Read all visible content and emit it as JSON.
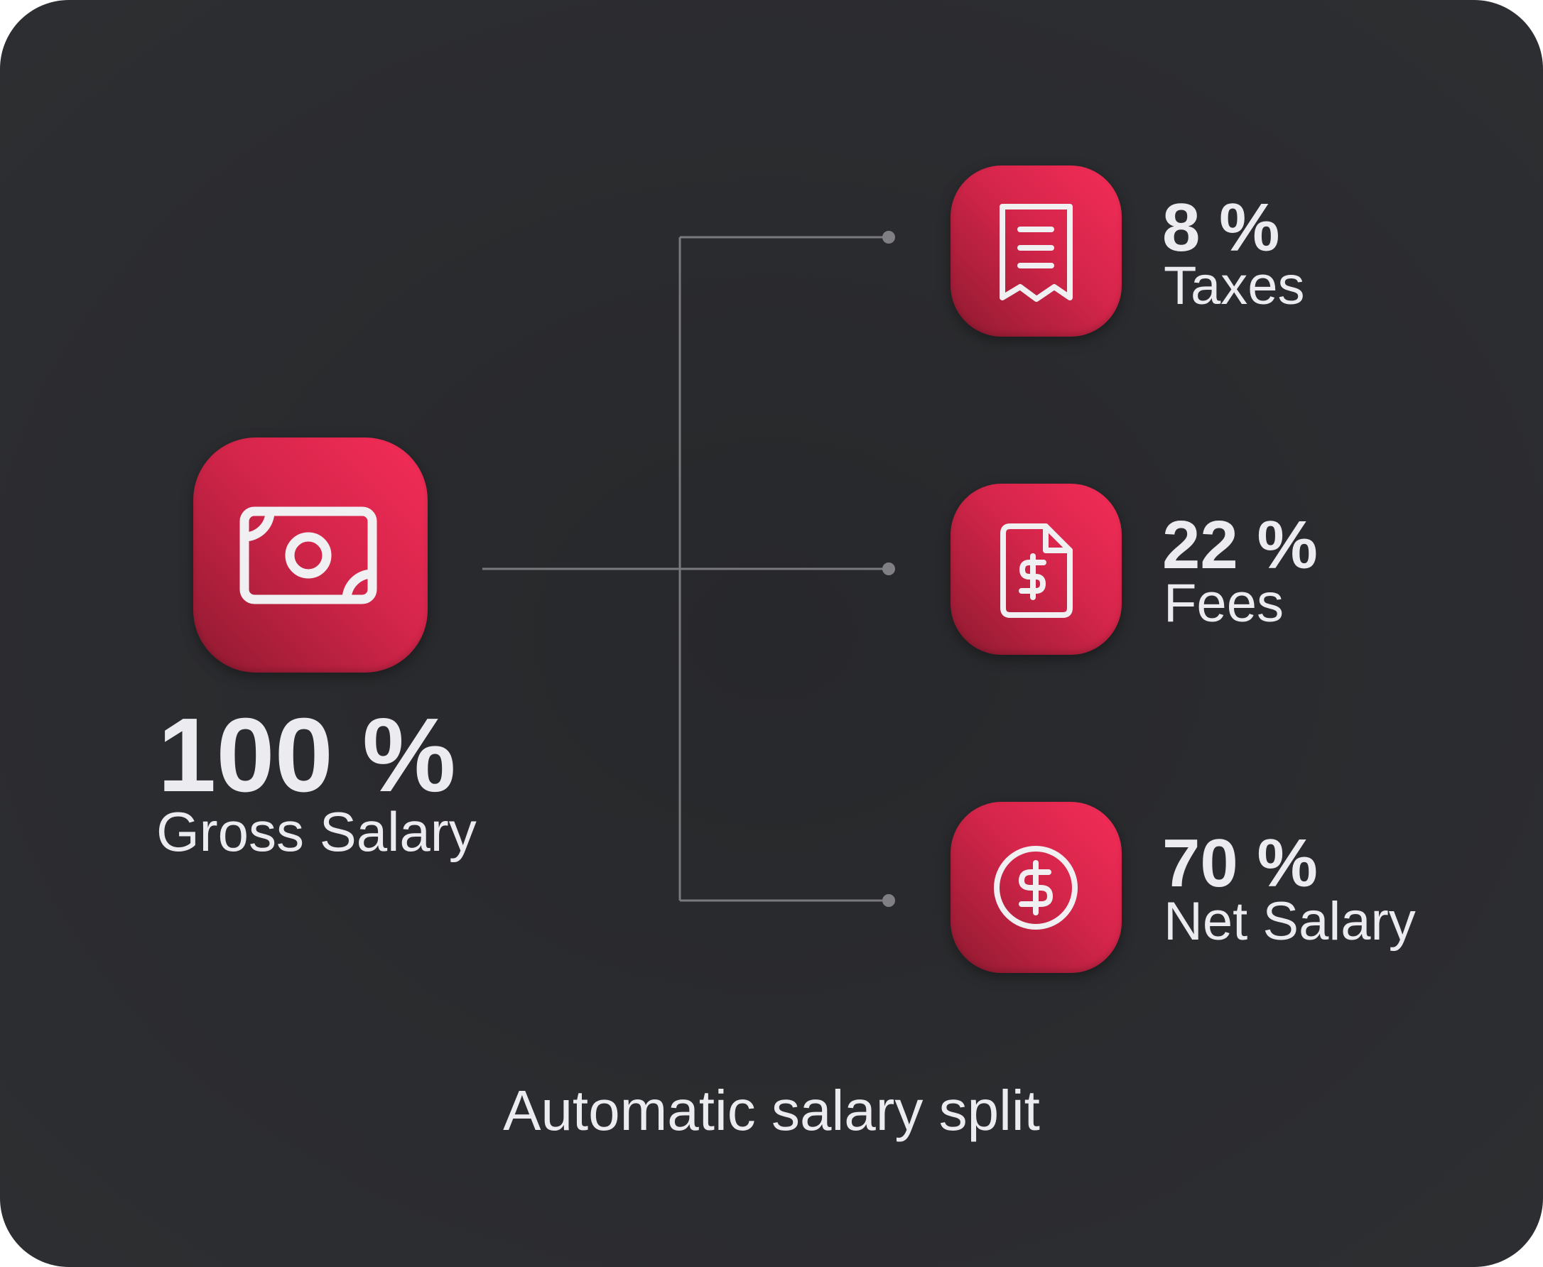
{
  "source": {
    "percent": "100 %",
    "label": "Gross Salary",
    "icon": "banknote-icon"
  },
  "splits": [
    {
      "percent": "8 %",
      "label": "Taxes",
      "icon": "receipt-icon"
    },
    {
      "percent": "22 %",
      "label": "Fees",
      "icon": "invoice-dollar-icon"
    },
    {
      "percent": "70 %",
      "label": "Net Salary",
      "icon": "dollar-circle-icon"
    }
  ],
  "caption": "Automatic salary split",
  "colors": {
    "background": "#2a2b2e",
    "accent": "#e82a50",
    "text": "#ececf0",
    "connector": "#7a7a7e"
  }
}
